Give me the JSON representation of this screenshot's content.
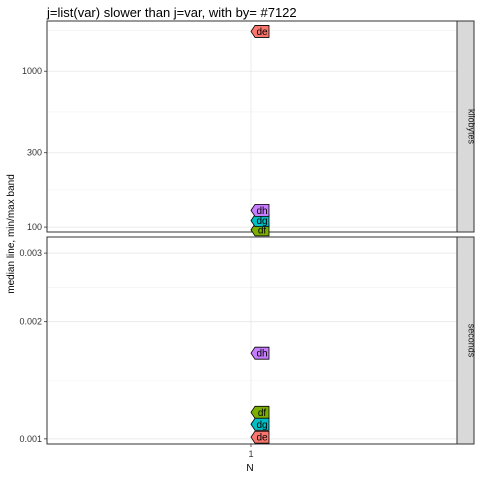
{
  "chart_data": {
    "type": "scatter",
    "title": "j=list(var) slower than j=var, with by= #7122",
    "xlabel": "N",
    "ylabel": "median line, min/max band",
    "x_ticks": [
      "1"
    ],
    "x": 1,
    "y_scale": "log",
    "colors": {
      "de": "#f8766d",
      "df": "#7cae00",
      "dg": "#00bfc4",
      "dh": "#c77cff"
    },
    "panels": [
      {
        "strip": "kilobytes",
        "ylim": [
          93,
          2100
        ],
        "y_ticks": [
          100,
          300,
          1000
        ],
        "y_tick_labels": [
          "100",
          "300",
          "1000"
        ],
        "series": [
          {
            "name": "de",
            "value": 1800
          },
          {
            "name": "df",
            "value": 96
          },
          {
            "name": "dg",
            "value": 110
          },
          {
            "name": "dh",
            "value": 128
          }
        ]
      },
      {
        "strip": "seconds",
        "ylim": [
          0.00097,
          0.0033
        ],
        "y_ticks": [
          0.001,
          0.002,
          0.003
        ],
        "y_tick_labels": [
          "0.001",
          "0.002",
          "0.003"
        ],
        "series": [
          {
            "name": "de",
            "value": 0.00101
          },
          {
            "name": "df",
            "value": 0.00117
          },
          {
            "name": "dg",
            "value": 0.00109
          },
          {
            "name": "dh",
            "value": 0.00166
          }
        ]
      }
    ]
  }
}
